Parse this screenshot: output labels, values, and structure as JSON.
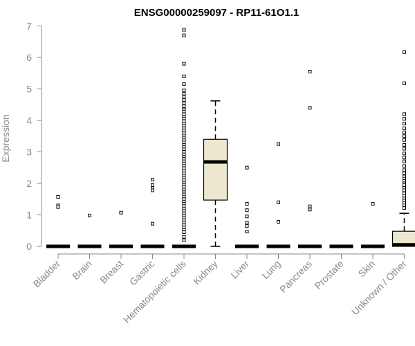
{
  "chart_data": {
    "type": "box",
    "title": "ENSG00000259097 - RP11-61O1.1",
    "xlabel": "",
    "ylabel": "Expression",
    "ylim": [
      0,
      7
    ],
    "yticks": [
      0,
      1,
      2,
      3,
      4,
      5,
      6,
      7
    ],
    "grid": false,
    "box_fill": "#ede7cf",
    "categories": [
      "Bladder",
      "Brain",
      "Breast",
      "Gastric",
      "Hematopoietic cells",
      "Kidney",
      "Liver",
      "Lung",
      "Pancreas",
      "Prostate",
      "Skin",
      "Unknown / Other"
    ],
    "boxes": [
      {
        "q1": 0,
        "median": 0,
        "q3": 0,
        "whisker_low": 0,
        "whisker_high": 0,
        "outliers": [
          1.57,
          1.3,
          1.25
        ]
      },
      {
        "q1": 0,
        "median": 0,
        "q3": 0,
        "whisker_low": 0,
        "whisker_high": 0,
        "outliers": [
          0.98
        ]
      },
      {
        "q1": 0,
        "median": 0,
        "q3": 0,
        "whisker_low": 0,
        "whisker_high": 0,
        "outliers": [
          1.07
        ]
      },
      {
        "q1": 0,
        "median": 0,
        "q3": 0,
        "whisker_low": 0,
        "whisker_high": 0,
        "outliers": [
          2.12,
          1.95,
          1.85,
          1.78,
          0.72
        ]
      },
      {
        "q1": 0,
        "median": 0,
        "q3": 0,
        "whisker_low": 0,
        "whisker_high": 0,
        "outliers": [
          6.88,
          6.7,
          5.8,
          5.4,
          5.15,
          4.95,
          4.85,
          4.75,
          4.65,
          4.55,
          4.45,
          4.35,
          4.28,
          4.2,
          4.12,
          4.05,
          3.98,
          3.9,
          3.82,
          3.75,
          3.68,
          3.6,
          3.52,
          3.45,
          3.38,
          3.3,
          3.22,
          3.15,
          3.08,
          3.0,
          2.92,
          2.85,
          2.78,
          2.7,
          2.62,
          2.55,
          2.48,
          2.4,
          2.32,
          2.25,
          2.18,
          2.1,
          2.02,
          1.95,
          1.88,
          1.8,
          1.72,
          1.65,
          1.58,
          1.5,
          1.42,
          1.35,
          1.28,
          1.2,
          1.12,
          1.05,
          0.98,
          0.9,
          0.82,
          0.75,
          0.68,
          0.6,
          0.52,
          0.45,
          0.3,
          0.2
        ]
      },
      {
        "q1": 1.47,
        "median": 2.68,
        "q3": 3.4,
        "whisker_low": 0,
        "whisker_high": 4.62,
        "outliers": []
      },
      {
        "q1": 0,
        "median": 0,
        "q3": 0,
        "whisker_low": 0,
        "whisker_high": 0,
        "outliers": [
          2.5,
          1.35,
          1.15,
          0.95,
          0.75,
          0.65,
          0.47
        ]
      },
      {
        "q1": 0,
        "median": 0,
        "q3": 0,
        "whisker_low": 0,
        "whisker_high": 0,
        "outliers": [
          3.25,
          1.4,
          0.78
        ]
      },
      {
        "q1": 0,
        "median": 0,
        "q3": 0,
        "whisker_low": 0,
        "whisker_high": 0,
        "outliers": [
          5.55,
          4.4,
          1.27,
          1.17
        ]
      },
      {
        "q1": 0,
        "median": 0,
        "q3": 0,
        "whisker_low": 0,
        "whisker_high": 0,
        "outliers": []
      },
      {
        "q1": 0,
        "median": 0,
        "q3": 0,
        "whisker_low": 0,
        "whisker_high": 0,
        "outliers": [
          1.35
        ]
      },
      {
        "q1": 0.0,
        "median": 0.05,
        "q3": 0.48,
        "whisker_low": 0,
        "whisker_high": 1.05,
        "outliers": [
          6.17,
          5.18,
          4.2,
          4.05,
          3.9,
          3.75,
          3.62,
          3.5,
          3.38,
          3.22,
          3.1,
          2.95,
          2.82,
          2.7,
          2.55,
          2.42,
          2.32,
          2.22,
          2.15,
          2.08,
          2.0,
          1.95,
          1.85,
          1.78,
          1.68,
          1.6,
          1.52,
          1.45,
          1.38,
          1.3,
          1.22
        ]
      }
    ]
  }
}
